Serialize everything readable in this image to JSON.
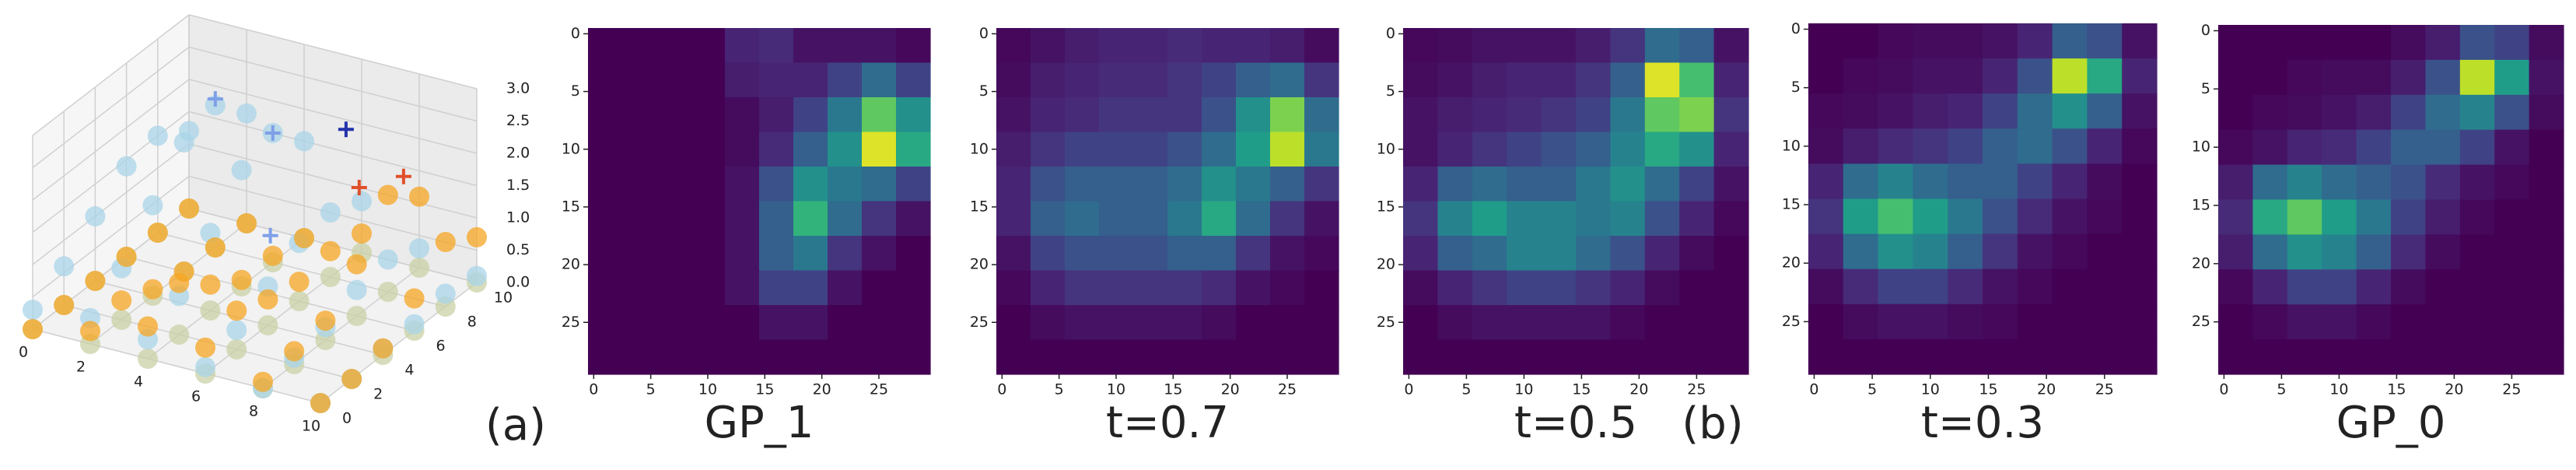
{
  "panel_labels": [
    "(a)",
    "(b)"
  ],
  "chart_data": [
    {
      "type": "scatter3d",
      "xlim": [
        0,
        10
      ],
      "ylim": [
        0,
        10
      ],
      "zlim": [
        0,
        3
      ],
      "xticks": [
        0,
        2,
        4,
        6,
        8,
        10
      ],
      "yticks": [
        0,
        2,
        4,
        6,
        8,
        10
      ],
      "zticks": [
        {
          "value": 0,
          "label": "0.0"
        },
        {
          "value": 0.5,
          "label": "0.5"
        },
        {
          "value": 1,
          "label": "1.0"
        },
        {
          "value": 1.5,
          "label": "1.5"
        },
        {
          "value": 2,
          "label": "2.0"
        },
        {
          "value": 2.5,
          "label": "2.5"
        },
        {
          "value": 3,
          "label": "3.0"
        }
      ],
      "x_grid": [
        0,
        2,
        4,
        6,
        8,
        10
      ],
      "y_grid": [
        0,
        2,
        4,
        6,
        8,
        10
      ],
      "series": [
        {
          "color": "#c9d1a6",
          "z": [
            [
              0,
              0,
              0,
              0,
              0,
              0
            ],
            [
              0,
              0,
              0,
              0,
              0,
              0
            ],
            [
              0,
              0,
              0,
              0,
              0,
              0
            ],
            [
              0,
              0,
              0,
              0,
              0,
              0
            ],
            [
              0,
              0,
              0,
              0,
              0,
              0
            ],
            [
              0,
              0,
              0,
              0,
              0,
              0
            ]
          ]
        },
        {
          "color": "#a9d4e8",
          "z": [
            [
              0.3,
              0.4,
              0.3,
              0.1,
              0,
              0
            ],
            [
              0.6,
              0.8,
              0.6,
              0.3,
              0.1,
              0
            ],
            [
              1.0,
              1.4,
              1.2,
              0.6,
              0.2,
              0.1
            ],
            [
              1.4,
              2.0,
              1.8,
              0.9,
              0.4,
              0.1
            ],
            [
              1.5,
              2.2,
              2.0,
              1.0,
              0.5,
              0.2
            ],
            [
              1.2,
              1.7,
              1.5,
              0.8,
              0.3,
              0.1
            ]
          ]
        },
        {
          "color": "#f5a623",
          "z": [
            [
              0,
              0.2,
              0.5,
              0.4,
              0.1,
              0
            ],
            [
              0,
              0.3,
              0.8,
              0.6,
              0.2,
              0
            ],
            [
              0,
              0.1,
              0.4,
              0.4,
              0.3,
              0.1
            ],
            [
              0,
              0,
              0.1,
              0.3,
              0.8,
              0.5
            ],
            [
              0,
              0,
              0.1,
              0.4,
              1.5,
              1.0
            ],
            [
              0,
              0,
              0,
              0.3,
              1.1,
              0.7
            ]
          ]
        }
      ],
      "markers": [
        {
          "color": "#7f9fe8",
          "x": [
            2,
            4,
            5
          ],
          "y": [
            8,
            8,
            6
          ],
          "z": [
            2.3,
            2.0,
            0.9
          ]
        },
        {
          "color": "#2233aa",
          "x": [
            6
          ],
          "y": [
            9
          ],
          "z": [
            2.1
          ]
        },
        {
          "color": "#e0502a",
          "x": [
            8,
            7
          ],
          "y": [
            9,
            8
          ],
          "z": [
            1.6,
            1.5
          ]
        }
      ]
    },
    {
      "type": "heatmap",
      "title": "GP_1",
      "colormap": "viridis",
      "vlim": [
        0,
        1
      ],
      "xlim": [
        -0.5,
        29.5
      ],
      "ylim": [
        -0.5,
        29.5
      ],
      "y_inverted": true,
      "xticks": [
        0,
        5,
        10,
        15,
        20,
        25
      ],
      "yticks": [
        0,
        5,
        10,
        15,
        20,
        25
      ],
      "values": [
        [
          0,
          0,
          0,
          0,
          0.1,
          0.12,
          0.05,
          0.05,
          0.05,
          0.02
        ],
        [
          0,
          0,
          0,
          0,
          0.08,
          0.1,
          0.1,
          0.2,
          0.35,
          0.2
        ],
        [
          0,
          0,
          0,
          0,
          0.03,
          0.08,
          0.2,
          0.4,
          0.75,
          0.5
        ],
        [
          0,
          0,
          0,
          0,
          0.03,
          0.12,
          0.3,
          0.5,
          0.95,
          0.6
        ],
        [
          0,
          0,
          0,
          0,
          0.05,
          0.25,
          0.5,
          0.4,
          0.35,
          0.2
        ],
        [
          0,
          0,
          0,
          0,
          0.05,
          0.3,
          0.65,
          0.35,
          0.15,
          0.05
        ],
        [
          0,
          0,
          0,
          0,
          0.05,
          0.3,
          0.4,
          0.15,
          0.05,
          0
        ],
        [
          0,
          0,
          0,
          0,
          0.05,
          0.2,
          0.2,
          0.05,
          0,
          0
        ],
        [
          0,
          0,
          0,
          0,
          0,
          0.05,
          0.05,
          0,
          0,
          0
        ],
        [
          0,
          0,
          0,
          0,
          0,
          0,
          0,
          0,
          0,
          0
        ]
      ]
    },
    {
      "type": "heatmap",
      "title": "t=0.7",
      "colormap": "viridis",
      "vlim": [
        0,
        1
      ],
      "xlim": [
        -0.5,
        29.5
      ],
      "ylim": [
        -0.5,
        29.5
      ],
      "y_inverted": true,
      "xticks": [
        0,
        5,
        10,
        15,
        20,
        25
      ],
      "yticks": [
        0,
        5,
        10,
        15,
        20,
        25
      ],
      "values": [
        [
          0.02,
          0.05,
          0.08,
          0.1,
          0.1,
          0.12,
          0.1,
          0.1,
          0.08,
          0.03
        ],
        [
          0.03,
          0.08,
          0.1,
          0.12,
          0.12,
          0.15,
          0.2,
          0.3,
          0.35,
          0.15
        ],
        [
          0.05,
          0.1,
          0.12,
          0.15,
          0.15,
          0.15,
          0.25,
          0.5,
          0.8,
          0.35
        ],
        [
          0.08,
          0.15,
          0.2,
          0.2,
          0.2,
          0.25,
          0.35,
          0.55,
          0.9,
          0.4
        ],
        [
          0.1,
          0.25,
          0.3,
          0.3,
          0.3,
          0.35,
          0.5,
          0.4,
          0.3,
          0.15
        ],
        [
          0.1,
          0.3,
          0.35,
          0.3,
          0.3,
          0.4,
          0.6,
          0.35,
          0.15,
          0.05
        ],
        [
          0.05,
          0.2,
          0.25,
          0.25,
          0.25,
          0.3,
          0.3,
          0.15,
          0.05,
          0.02
        ],
        [
          0.02,
          0.1,
          0.15,
          0.15,
          0.15,
          0.15,
          0.12,
          0.05,
          0.02,
          0
        ],
        [
          0,
          0.03,
          0.05,
          0.05,
          0.05,
          0.05,
          0.03,
          0,
          0,
          0
        ],
        [
          0,
          0,
          0,
          0,
          0,
          0,
          0,
          0,
          0,
          0
        ]
      ]
    },
    {
      "type": "heatmap",
      "title": "t=0.5",
      "colormap": "viridis",
      "vlim": [
        0,
        1
      ],
      "xlim": [
        -0.5,
        29.5
      ],
      "ylim": [
        -0.5,
        29.5
      ],
      "y_inverted": true,
      "xticks": [
        0,
        5,
        10,
        15,
        20,
        25
      ],
      "yticks": [
        0,
        5,
        10,
        15,
        20,
        25
      ],
      "values": [
        [
          0.02,
          0.03,
          0.05,
          0.05,
          0.05,
          0.08,
          0.15,
          0.35,
          0.3,
          0.05
        ],
        [
          0.03,
          0.05,
          0.08,
          0.1,
          0.1,
          0.15,
          0.3,
          0.95,
          0.7,
          0.1
        ],
        [
          0.05,
          0.08,
          0.1,
          0.12,
          0.15,
          0.2,
          0.4,
          0.75,
          0.8,
          0.15
        ],
        [
          0.05,
          0.1,
          0.15,
          0.2,
          0.25,
          0.3,
          0.45,
          0.6,
          0.5,
          0.1
        ],
        [
          0.1,
          0.3,
          0.35,
          0.3,
          0.3,
          0.4,
          0.5,
          0.35,
          0.2,
          0.05
        ],
        [
          0.15,
          0.45,
          0.55,
          0.45,
          0.45,
          0.4,
          0.45,
          0.25,
          0.1,
          0.02
        ],
        [
          0.1,
          0.3,
          0.35,
          0.45,
          0.45,
          0.35,
          0.25,
          0.1,
          0.03,
          0
        ],
        [
          0.03,
          0.1,
          0.15,
          0.2,
          0.2,
          0.15,
          0.1,
          0.03,
          0,
          0
        ],
        [
          0,
          0.03,
          0.05,
          0.05,
          0.05,
          0.05,
          0.02,
          0,
          0,
          0
        ],
        [
          0,
          0,
          0,
          0,
          0,
          0,
          0,
          0,
          0,
          0
        ]
      ]
    },
    {
      "type": "heatmap",
      "title": "t=0.3",
      "colormap": "viridis",
      "vlim": [
        0,
        1
      ],
      "xlim": [
        -0.5,
        29.5
      ],
      "ylim": [
        -0.5,
        29.5
      ],
      "y_inverted": true,
      "xticks": [
        0,
        5,
        10,
        15,
        20,
        25
      ],
      "yticks": [
        0,
        5,
        10,
        15,
        20,
        25
      ],
      "values": [
        [
          0,
          0,
          0.02,
          0.03,
          0.03,
          0.05,
          0.1,
          0.3,
          0.25,
          0.05
        ],
        [
          0,
          0.02,
          0.03,
          0.05,
          0.05,
          0.1,
          0.25,
          0.9,
          0.6,
          0.1
        ],
        [
          0.02,
          0.03,
          0.05,
          0.08,
          0.1,
          0.2,
          0.35,
          0.5,
          0.3,
          0.05
        ],
        [
          0.03,
          0.08,
          0.12,
          0.15,
          0.2,
          0.3,
          0.35,
          0.25,
          0.1,
          0.02
        ],
        [
          0.1,
          0.35,
          0.45,
          0.35,
          0.3,
          0.3,
          0.2,
          0.1,
          0.03,
          0
        ],
        [
          0.15,
          0.55,
          0.7,
          0.55,
          0.4,
          0.25,
          0.12,
          0.05,
          0.02,
          0
        ],
        [
          0.1,
          0.35,
          0.5,
          0.45,
          0.3,
          0.15,
          0.05,
          0.02,
          0,
          0
        ],
        [
          0.03,
          0.12,
          0.2,
          0.2,
          0.12,
          0.05,
          0.02,
          0,
          0,
          0
        ],
        [
          0,
          0.03,
          0.05,
          0.05,
          0.03,
          0.02,
          0,
          0,
          0,
          0
        ],
        [
          0,
          0,
          0,
          0,
          0,
          0,
          0,
          0,
          0,
          0
        ]
      ]
    },
    {
      "type": "heatmap",
      "title": "GP_0",
      "colormap": "viridis",
      "vlim": [
        0,
        1
      ],
      "xlim": [
        -0.5,
        29.5
      ],
      "ylim": [
        -0.5,
        29.5
      ],
      "y_inverted": true,
      "xticks": [
        0,
        5,
        10,
        15,
        20,
        25
      ],
      "yticks": [
        0,
        5,
        10,
        15,
        20,
        25
      ],
      "values": [
        [
          0,
          0,
          0,
          0,
          0,
          0.03,
          0.08,
          0.25,
          0.2,
          0.03
        ],
        [
          0,
          0,
          0.02,
          0.03,
          0.03,
          0.08,
          0.25,
          0.9,
          0.55,
          0.05
        ],
        [
          0,
          0.02,
          0.03,
          0.05,
          0.08,
          0.2,
          0.35,
          0.45,
          0.25,
          0.03
        ],
        [
          0.02,
          0.05,
          0.1,
          0.12,
          0.2,
          0.3,
          0.3,
          0.2,
          0.05,
          0
        ],
        [
          0.08,
          0.35,
          0.45,
          0.35,
          0.3,
          0.25,
          0.12,
          0.05,
          0.02,
          0
        ],
        [
          0.12,
          0.6,
          0.75,
          0.55,
          0.4,
          0.2,
          0.08,
          0.02,
          0,
          0
        ],
        [
          0.08,
          0.35,
          0.5,
          0.45,
          0.3,
          0.12,
          0.03,
          0,
          0,
          0
        ],
        [
          0.02,
          0.1,
          0.2,
          0.2,
          0.1,
          0.03,
          0,
          0,
          0,
          0
        ],
        [
          0,
          0.02,
          0.05,
          0.05,
          0.02,
          0,
          0,
          0,
          0,
          0
        ],
        [
          0,
          0,
          0,
          0,
          0,
          0,
          0,
          0,
          0,
          0
        ]
      ]
    }
  ]
}
